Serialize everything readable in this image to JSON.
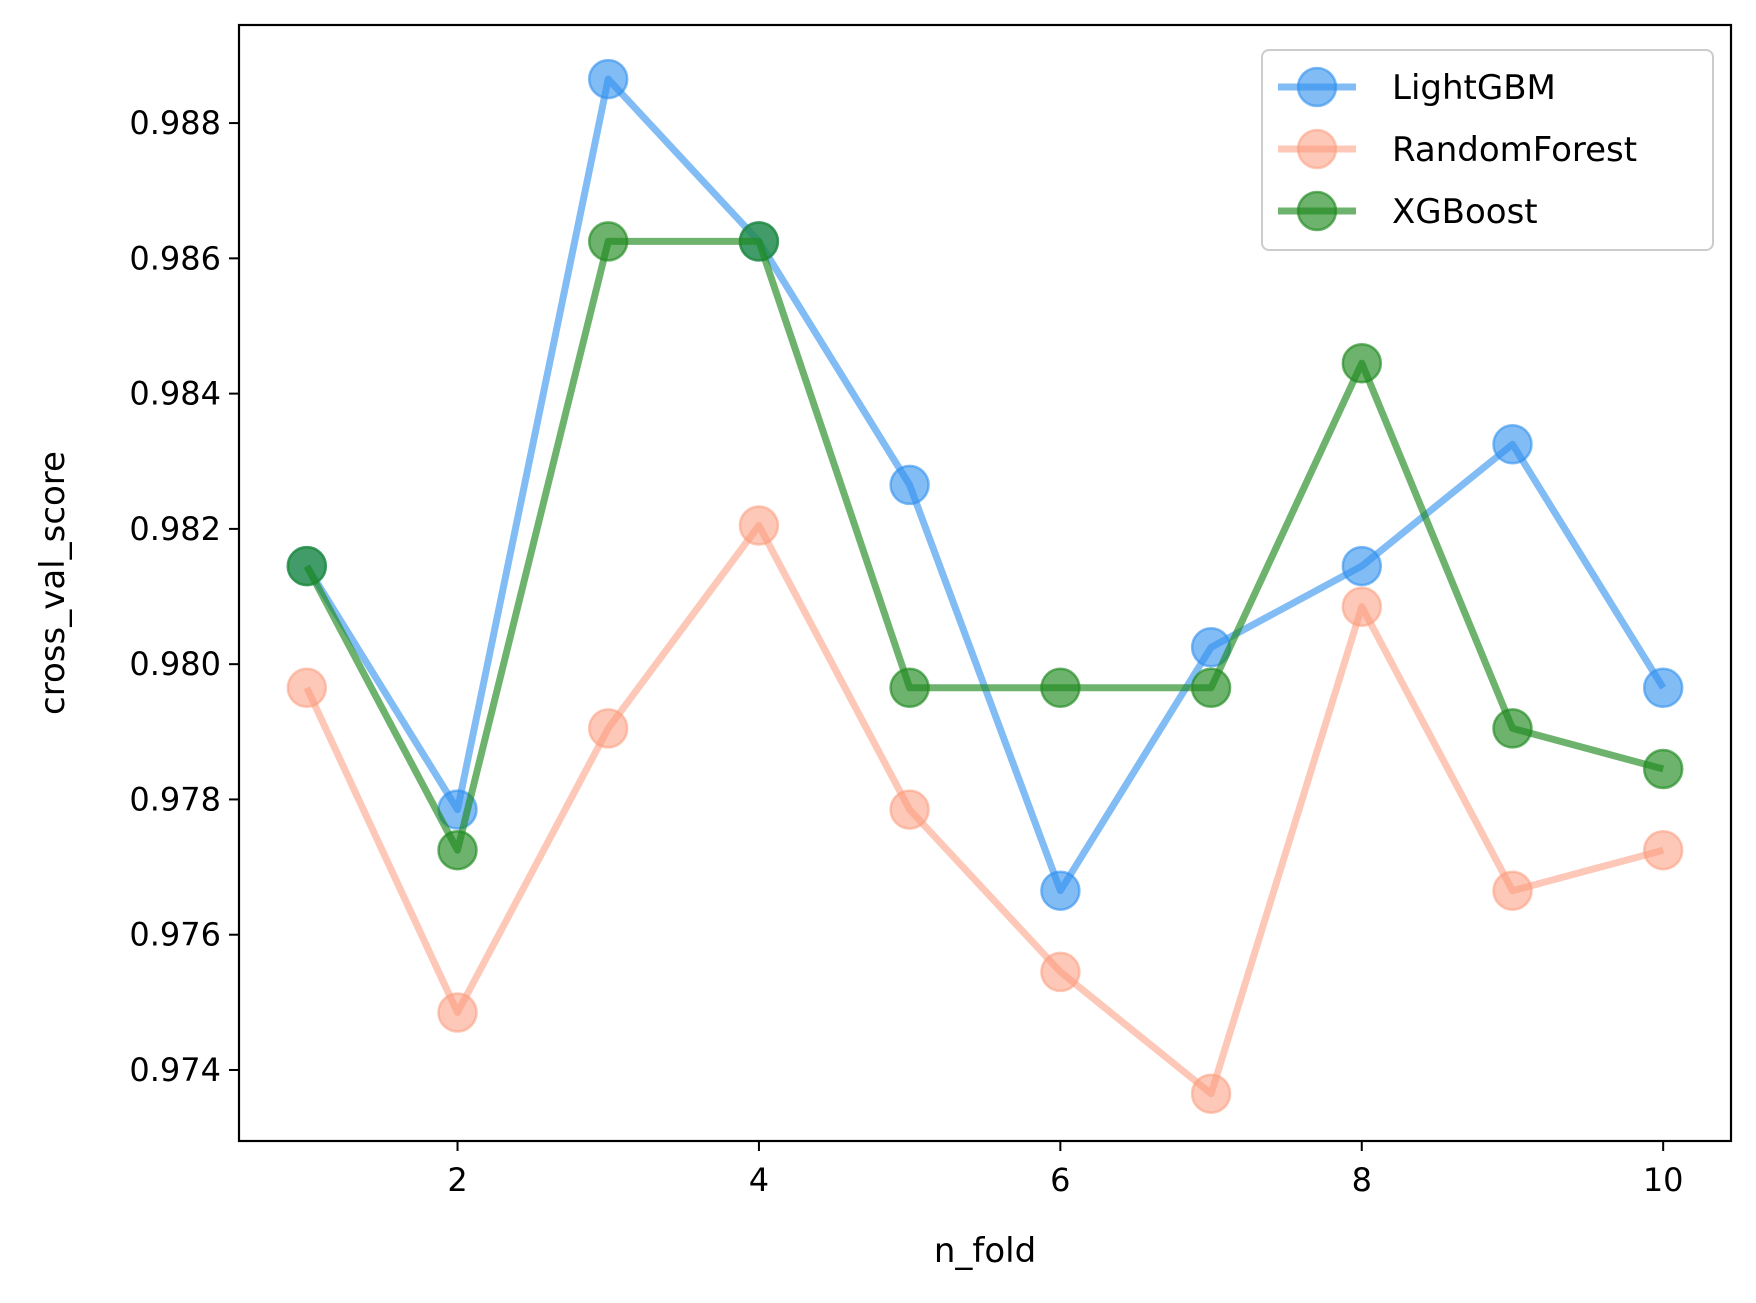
{
  "chart_data": {
    "type": "line",
    "title": "",
    "xlabel": "n_fold",
    "ylabel": "cross_val_score",
    "x": [
      1,
      2,
      3,
      4,
      5,
      6,
      7,
      8,
      9,
      10
    ],
    "xlim": [
      0.55,
      10.45
    ],
    "ylim": [
      0.97295,
      0.98945
    ],
    "xticks": [
      2,
      4,
      6,
      8,
      10
    ],
    "xtick_labels": [
      "2",
      "4",
      "6",
      "8",
      "10"
    ],
    "yticks": [
      0.974,
      0.976,
      0.978,
      0.98,
      0.982,
      0.984,
      0.986,
      0.988
    ],
    "ytick_labels": [
      "0.974",
      "0.976",
      "0.978",
      "0.980",
      "0.982",
      "0.984",
      "0.986",
      "0.988"
    ],
    "grid": false,
    "legend_position": "top-right",
    "series": [
      {
        "name": "LightGBM",
        "color": "#2f8fef",
        "opacity": 0.6,
        "values": [
          0.98145,
          0.97785,
          0.98865,
          0.98625,
          0.98265,
          0.97665,
          0.98025,
          0.98145,
          0.98325,
          0.97965
        ]
      },
      {
        "name": "RandomForest",
        "color": "#fc9a7c",
        "opacity": 0.55,
        "values": [
          0.97965,
          0.97485,
          0.97905,
          0.98205,
          0.97785,
          0.97545,
          0.97365,
          0.98085,
          0.97665,
          0.97725
        ]
      },
      {
        "name": "XGBoost",
        "color": "#1f8a1f",
        "opacity": 0.65,
        "values": [
          0.98145,
          0.97725,
          0.98625,
          0.98625,
          0.97965,
          0.97965,
          0.97965,
          0.98445,
          0.97905,
          0.97845
        ]
      }
    ]
  }
}
